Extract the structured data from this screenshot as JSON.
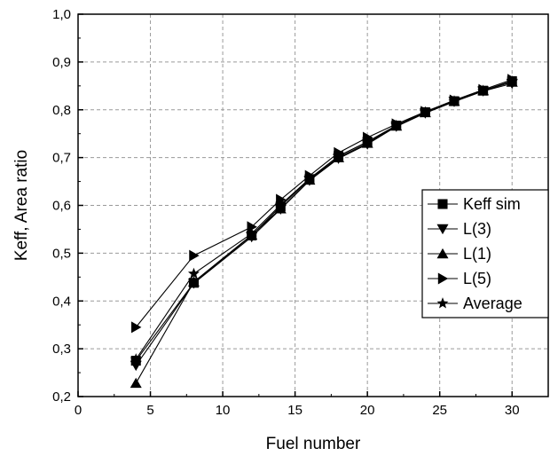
{
  "chart_data": {
    "type": "line",
    "xlabel": "Fuel number",
    "ylabel": "Keff, Area ratio",
    "xlim": [
      0,
      32.5
    ],
    "ylim": [
      0.2,
      1.0
    ],
    "x_ticks": [
      0,
      5,
      10,
      15,
      20,
      25,
      30
    ],
    "x_tick_labels": [
      "0",
      "5",
      "10",
      "15",
      "20",
      "25",
      "30"
    ],
    "y_ticks": [
      0.2,
      0.3,
      0.4,
      0.5,
      0.6,
      0.7,
      0.8,
      0.9,
      1.0
    ],
    "y_tick_labels": [
      "0,2",
      "0,3",
      "0,4",
      "0,5",
      "0,6",
      "0,7",
      "0,8",
      "0,9",
      "1,0"
    ],
    "grid": true,
    "legend_position": "right",
    "x": [
      4,
      8,
      12,
      14,
      16,
      18,
      20,
      22,
      24,
      26,
      28,
      30
    ],
    "series": [
      {
        "name": "Keff sim",
        "marker": "square",
        "values": [
          0.275,
          0.438,
          0.537,
          0.598,
          0.655,
          0.703,
          0.733,
          0.767,
          0.795,
          0.818,
          0.84,
          0.86
        ]
      },
      {
        "name": "L(3)",
        "marker": "triangle-down",
        "values": [
          0.265,
          0.437,
          0.534,
          0.592,
          0.652,
          0.698,
          0.728,
          0.765,
          0.793,
          0.817,
          0.839,
          0.855
        ]
      },
      {
        "name": "L(1)",
        "marker": "triangle-up",
        "values": [
          0.228,
          0.44,
          0.538,
          0.593,
          0.653,
          0.7,
          0.73,
          0.766,
          0.794,
          0.818,
          0.84,
          0.858
        ]
      },
      {
        "name": "L(5)",
        "marker": "triangle-right",
        "values": [
          0.345,
          0.495,
          0.555,
          0.612,
          0.662,
          0.71,
          0.742,
          0.77,
          0.796,
          0.82,
          0.842,
          0.863
        ]
      },
      {
        "name": "Average",
        "marker": "star",
        "values": [
          0.278,
          0.457,
          0.541,
          0.601,
          0.656,
          0.703,
          0.733,
          0.767,
          0.795,
          0.818,
          0.84,
          0.859
        ]
      }
    ]
  }
}
